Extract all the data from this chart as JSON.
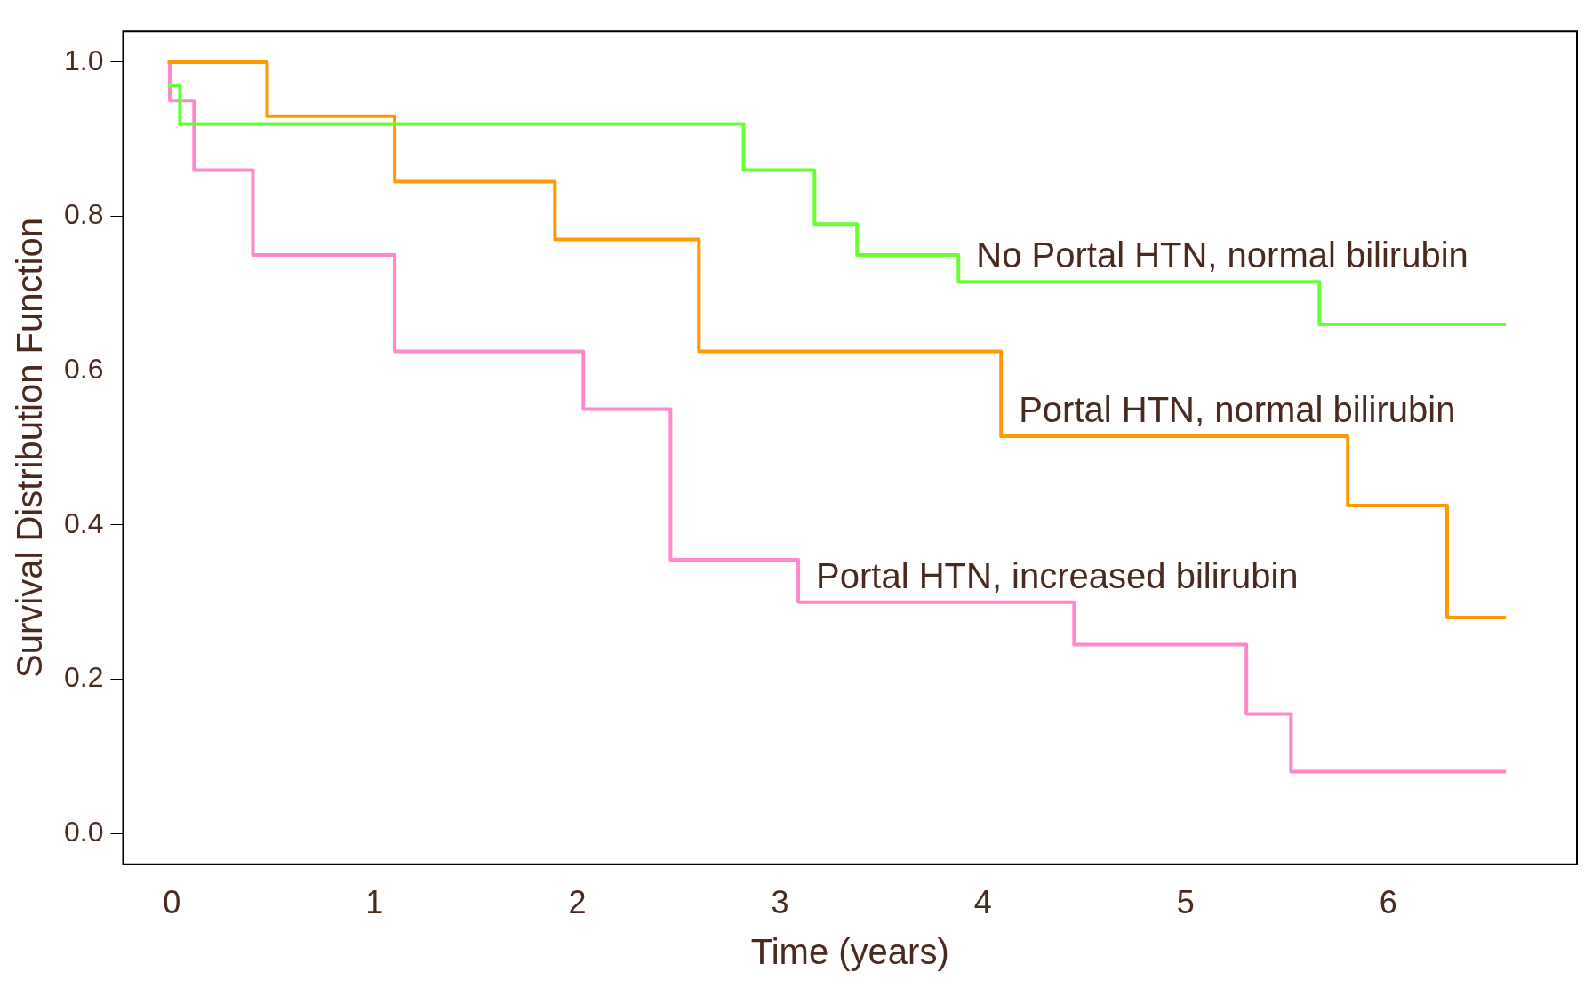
{
  "chart_data": {
    "type": "step",
    "xlabel": "Time (years)",
    "ylabel": "Survival Distribution Function",
    "xlim": [
      -0.24,
      6.93
    ],
    "ylim": [
      -0.04,
      1.04
    ],
    "xticks": [
      0,
      1,
      2,
      3,
      4,
      5,
      6
    ],
    "yticks": [
      {
        "value": 0,
        "label": "0.0"
      },
      {
        "value": 0.2,
        "label": "0.2"
      },
      {
        "value": 0.4,
        "label": "0.4"
      },
      {
        "value": 0.6,
        "label": "0.6"
      },
      {
        "value": 0.8,
        "label": "0.8"
      },
      {
        "value": 1,
        "label": "1.0"
      }
    ],
    "grid": false,
    "legend": false,
    "marker": "none",
    "line_style": "solid",
    "series": [
      {
        "name": "No Portal HTN, normal bilirubin",
        "color": "#66ff33",
        "x": [
          -0.02,
          0.04,
          2.82,
          3.17,
          3.38,
          3.88,
          5.66,
          6.58
        ],
        "values": [
          0.97,
          0.92,
          0.86,
          0.79,
          0.75,
          0.715,
          0.66,
          0.66
        ]
      },
      {
        "name": "Portal HTN, normal bilirubin",
        "color": "#ff9900",
        "x": [
          -0.02,
          0.47,
          1.1,
          1.89,
          2.6,
          4.09,
          5.8,
          6.29,
          6.58
        ],
        "values": [
          1.0,
          0.93,
          0.845,
          0.77,
          0.625,
          0.515,
          0.425,
          0.28,
          0.28
        ]
      },
      {
        "name": "Portal HTN, increased bilirubin",
        "color": "#ff88cc",
        "x": [
          -0.02,
          -0.01,
          0.11,
          0.4,
          1.1,
          2.03,
          2.46,
          3.09,
          4.45,
          5.3,
          5.52,
          6.58
        ],
        "values": [
          1.0,
          0.95,
          0.86,
          0.75,
          0.625,
          0.55,
          0.355,
          0.3,
          0.245,
          0.155,
          0.08,
          0.08
        ]
      }
    ]
  }
}
